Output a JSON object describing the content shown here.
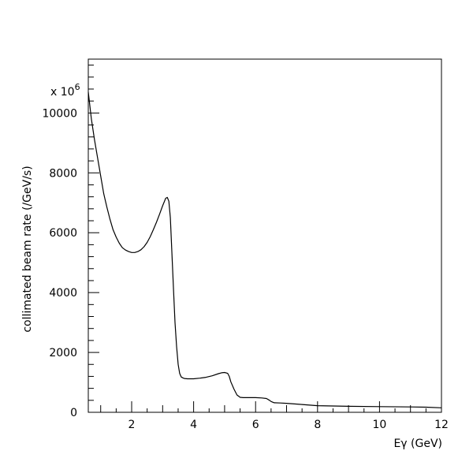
{
  "chart_data": {
    "type": "line",
    "xlabel": "Eγ (GeV)",
    "ylabel": "collimated beam rate (/GeV/s)",
    "multiplier_prefix": "x 10",
    "multiplier_exponent": "6",
    "xlim": [
      0.6,
      12
    ],
    "ylim": [
      0,
      11800
    ],
    "x_major_ticks": [
      2,
      4,
      6,
      8,
      10,
      12
    ],
    "x_tick_labels": [
      "2",
      "4",
      "6",
      "8",
      "10",
      "12"
    ],
    "y_major_ticks": [
      0,
      2000,
      4000,
      6000,
      8000,
      10000
    ],
    "y_tick_labels": [
      "0",
      "2000",
      "4000",
      "6000",
      "8000",
      "10000"
    ],
    "grid": false,
    "legend": "none",
    "line_color": "#000000",
    "series": [
      {
        "x": [
          0.6,
          0.7,
          0.8,
          0.9,
          1.0,
          1.1,
          1.2,
          1.3,
          1.4,
          1.5,
          1.6,
          1.7,
          1.8,
          1.9,
          2.0,
          2.1,
          2.2,
          2.3,
          2.4,
          2.5,
          2.6,
          2.7,
          2.8,
          2.9,
          3.0,
          3.1,
          3.15,
          3.2,
          3.25,
          3.3,
          3.35,
          3.4,
          3.45,
          3.5,
          3.55,
          3.6,
          3.65,
          3.7,
          3.8,
          4.0,
          4.2,
          4.4,
          4.6,
          4.8,
          4.9,
          5.0,
          5.1,
          5.15,
          5.2,
          5.3,
          5.4,
          5.5,
          5.6,
          5.8,
          6.0,
          6.2,
          6.35,
          6.45,
          6.5,
          6.6,
          6.8,
          7.0,
          7.5,
          8.0,
          8.5,
          9.0,
          10.0,
          11.0,
          11.5,
          12.0
        ],
        "y": [
          10700,
          9800,
          9100,
          8500,
          7900,
          7300,
          6850,
          6450,
          6100,
          5850,
          5650,
          5500,
          5420,
          5370,
          5340,
          5340,
          5370,
          5430,
          5530,
          5680,
          5870,
          6100,
          6350,
          6620,
          6900,
          7150,
          7180,
          7050,
          6500,
          5300,
          4100,
          3000,
          2200,
          1600,
          1300,
          1180,
          1150,
          1130,
          1120,
          1120,
          1140,
          1170,
          1220,
          1290,
          1320,
          1330,
          1300,
          1200,
          1020,
          780,
          580,
          500,
          490,
          490,
          490,
          480,
          460,
          400,
          360,
          320,
          310,
          300,
          260,
          220,
          210,
          200,
          190,
          180,
          170,
          150
        ]
      }
    ]
  }
}
